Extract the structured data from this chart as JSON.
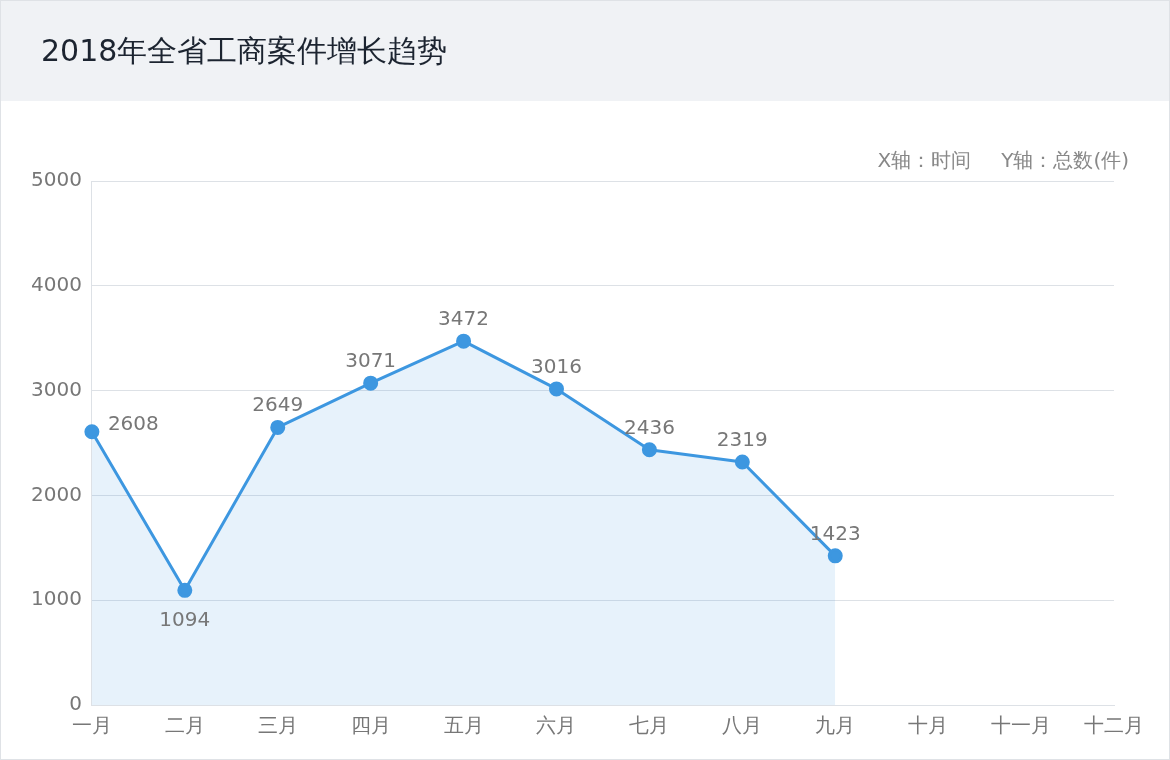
{
  "chart_data": {
    "type": "area",
    "title": "2018年全省工商案件增长趋势",
    "xlabel": "X轴：时间",
    "ylabel": "Y轴：总数(件)",
    "categories": [
      "一月",
      "二月",
      "三月",
      "四月",
      "五月",
      "六月",
      "七月",
      "八月",
      "九月",
      "十月",
      "十一月",
      "十二月"
    ],
    "series": [
      {
        "color": "#3d97e0",
        "values": [
          2608,
          1094,
          2649,
          3071,
          3472,
          3016,
          2436,
          2319,
          1423,
          null,
          null,
          null
        ]
      }
    ],
    "ylim": [
      0,
      5000
    ],
    "yticks": [
      0,
      1000,
      2000,
      3000,
      4000,
      5000
    ],
    "grid": "y",
    "legend": false,
    "marker": "circle",
    "line_style": "solid",
    "data_labels": true
  }
}
